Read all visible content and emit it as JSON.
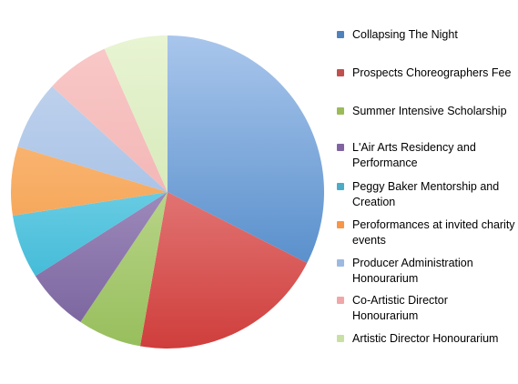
{
  "chart_data": {
    "type": "pie",
    "title": "",
    "legend_position": "right",
    "start_angle": "12 o'clock",
    "direction": "clockwise",
    "series": [
      {
        "values": [
          32,
          20,
          6.5,
          6.5,
          6.5,
          7,
          7,
          6.5,
          6.5
        ],
        "labels": [
          "Collapsing The Night",
          "Prospects Choreographers Fee",
          "Summer Intensive Scholarship",
          "L'Air Arts Residency and Performance",
          "Peggy Baker Mentorship and Creation",
          "Peroformances at invited charity events",
          "Producer Administration Honourarium",
          "Co-Artistic Director Honourarium",
          "Artistic Director Honourarium"
        ]
      }
    ],
    "colors": [
      {
        "light": "#a9c6ec",
        "dark": "#3c7cc0",
        "swatch": "#4f81bd"
      },
      {
        "light": "#f3a9a8",
        "dark": "#cf3e3c",
        "swatch": "#c0504d"
      },
      {
        "light": "#d9ebb4",
        "dark": "#97be5c",
        "swatch": "#9bbb59"
      },
      {
        "light": "#c4b2d9",
        "dark": "#76609b",
        "swatch": "#8064a2"
      },
      {
        "light": "#a9e9f7",
        "dark": "#27aecf",
        "swatch": "#4bacc6"
      },
      {
        "light": "#fdc48c",
        "dark": "#f1943a",
        "swatch": "#f79646"
      },
      {
        "light": "#c6d7ef",
        "dark": "#90b1df",
        "swatch": "#9cb9e1"
      },
      {
        "light": "#f9c9c8",
        "dark": "#eda6a5",
        "swatch": "#f0a7a7"
      },
      {
        "light": "#e8f4d3",
        "dark": "#c8e0a3",
        "swatch": "#c9e0a4"
      }
    ]
  }
}
